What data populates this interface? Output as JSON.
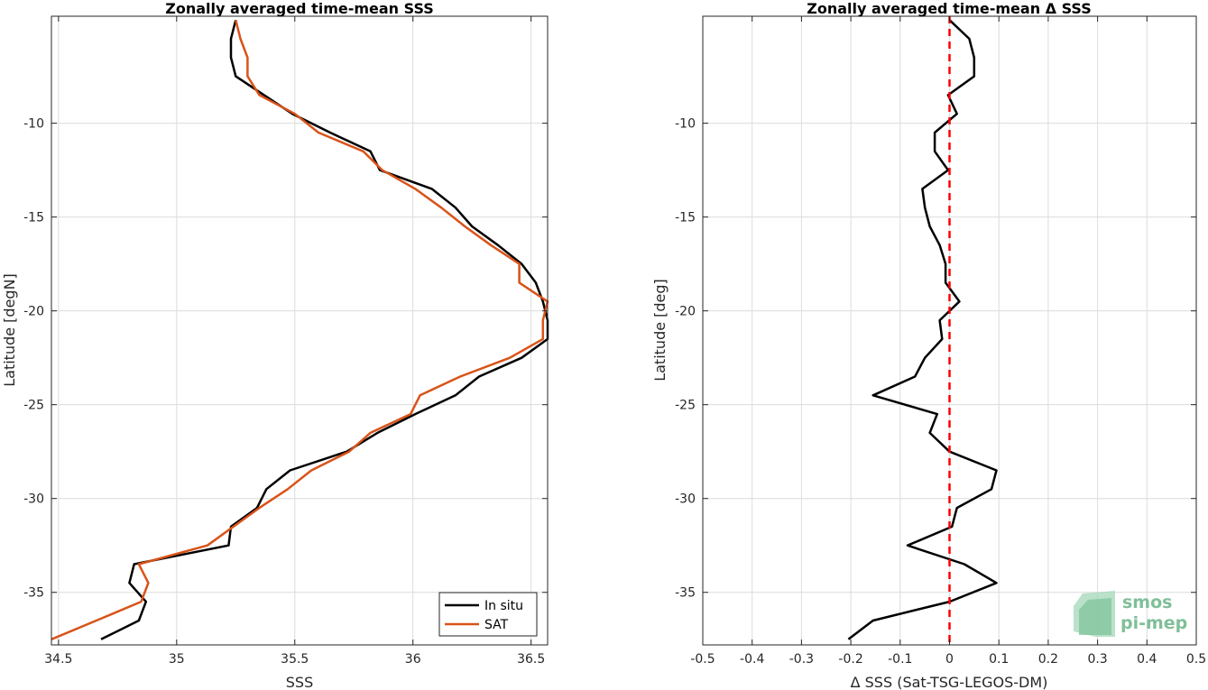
{
  "chart_data": [
    {
      "type": "line",
      "title": "Zonally averaged time-mean SSS",
      "xlabel": "SSS",
      "ylabel": "Latitude [degN]",
      "xlim": [
        34.47,
        36.57
      ],
      "ylim": [
        -37.8,
        -4.3
      ],
      "xticks": [
        34.5,
        35,
        35.5,
        36,
        36.5
      ],
      "xtick_labels": [
        "34.5",
        "35",
        "35.5",
        "36",
        "36.5"
      ],
      "yticks": [
        -35,
        -30,
        -25,
        -20,
        -15,
        -10
      ],
      "ytick_labels": [
        "-35",
        "-30",
        "-25",
        "-20",
        "-15",
        "-10"
      ],
      "grid": true,
      "legend": "bottom-right",
      "series": [
        {
          "name": "In situ",
          "color": "#000000",
          "points": [
            [
              35.25,
              -4.5
            ],
            [
              35.23,
              -5.5
            ],
            [
              35.23,
              -6.5
            ],
            [
              35.25,
              -7.5
            ],
            [
              35.37,
              -8.5
            ],
            [
              35.49,
              -9.5
            ],
            [
              35.65,
              -10.5
            ],
            [
              35.82,
              -11.5
            ],
            [
              35.86,
              -12.5
            ],
            [
              36.08,
              -13.5
            ],
            [
              36.18,
              -14.5
            ],
            [
              36.25,
              -15.5
            ],
            [
              36.36,
              -16.5
            ],
            [
              36.46,
              -17.5
            ],
            [
              36.52,
              -18.5
            ],
            [
              36.55,
              -19.5
            ],
            [
              36.57,
              -20.5
            ],
            [
              36.57,
              -21.5
            ],
            [
              36.46,
              -22.5
            ],
            [
              36.28,
              -23.5
            ],
            [
              36.18,
              -24.5
            ],
            [
              36.01,
              -25.5
            ],
            [
              35.85,
              -26.5
            ],
            [
              35.72,
              -27.5
            ],
            [
              35.48,
              -28.5
            ],
            [
              35.38,
              -29.5
            ],
            [
              35.34,
              -30.5
            ],
            [
              35.23,
              -31.5
            ],
            [
              35.22,
              -32.5
            ],
            [
              34.82,
              -33.5
            ],
            [
              34.8,
              -34.5
            ],
            [
              34.87,
              -35.5
            ],
            [
              34.84,
              -36.5
            ],
            [
              34.68,
              -37.5
            ]
          ]
        },
        {
          "name": "SAT",
          "color": "#d95319",
          "points": [
            [
              35.25,
              -4.5
            ],
            [
              35.27,
              -5.5
            ],
            [
              35.3,
              -6.5
            ],
            [
              35.3,
              -7.5
            ],
            [
              35.35,
              -8.5
            ],
            [
              35.5,
              -9.5
            ],
            [
              35.6,
              -10.5
            ],
            [
              35.79,
              -11.5
            ],
            [
              35.87,
              -12.5
            ],
            [
              36.01,
              -13.5
            ],
            [
              36.12,
              -14.5
            ],
            [
              36.22,
              -15.5
            ],
            [
              36.33,
              -16.5
            ],
            [
              36.45,
              -17.5
            ],
            [
              36.45,
              -18.5
            ],
            [
              36.57,
              -19.5
            ],
            [
              36.55,
              -20.5
            ],
            [
              36.55,
              -21.5
            ],
            [
              36.41,
              -22.5
            ],
            [
              36.2,
              -23.5
            ],
            [
              36.03,
              -24.5
            ],
            [
              35.99,
              -25.5
            ],
            [
              35.82,
              -26.5
            ],
            [
              35.73,
              -27.5
            ],
            [
              35.57,
              -28.5
            ],
            [
              35.47,
              -29.5
            ],
            [
              35.35,
              -30.5
            ],
            [
              35.24,
              -31.5
            ],
            [
              35.13,
              -32.5
            ],
            [
              34.84,
              -33.5
            ],
            [
              34.88,
              -34.5
            ],
            [
              34.85,
              -35.5
            ],
            [
              34.66,
              -36.5
            ],
            [
              34.47,
              -37.5
            ]
          ]
        }
      ]
    },
    {
      "type": "line",
      "title": "Zonally averaged time-mean Δ SSS",
      "xlabel": "Δ SSS (Sat-TSG-LEGOS-DM)",
      "ylabel": "Latitude [deg]",
      "xlim": [
        -0.5,
        0.5
      ],
      "ylim": [
        -37.8,
        -4.3
      ],
      "xticks": [
        -0.5,
        -0.4,
        -0.3,
        -0.2,
        -0.1,
        0,
        0.1,
        0.2,
        0.3,
        0.4,
        0.5
      ],
      "xtick_labels": [
        "-0.5",
        "-0.4",
        "-0.3",
        "-0.2",
        "-0.1",
        "0",
        "0.1",
        "0.2",
        "0.3",
        "0.4",
        "0.5"
      ],
      "yticks": [
        -35,
        -30,
        -25,
        -20,
        -15,
        -10
      ],
      "ytick_labels": [
        "-35",
        "-30",
        "-25",
        "-20",
        "-15",
        "-10"
      ],
      "grid": true,
      "series": [
        {
          "color": "#000000",
          "points": [
            [
              0.0,
              -4.5
            ],
            [
              0.04,
              -5.5
            ],
            [
              0.05,
              -6.5
            ],
            [
              0.05,
              -7.5
            ],
            [
              -0.003,
              -8.5
            ],
            [
              0.015,
              -9.5
            ],
            [
              -0.03,
              -10.5
            ],
            [
              -0.03,
              -11.5
            ],
            [
              -0.003,
              -12.5
            ],
            [
              -0.055,
              -13.5
            ],
            [
              -0.05,
              -14.5
            ],
            [
              -0.04,
              -15.5
            ],
            [
              -0.02,
              -16.5
            ],
            [
              -0.008,
              -17.5
            ],
            [
              -0.008,
              -18.5
            ],
            [
              0.02,
              -19.5
            ],
            [
              -0.02,
              -20.5
            ],
            [
              -0.015,
              -21.5
            ],
            [
              -0.05,
              -22.5
            ],
            [
              -0.07,
              -23.5
            ],
            [
              -0.155,
              -24.5
            ],
            [
              -0.025,
              -25.5
            ],
            [
              -0.04,
              -26.5
            ],
            [
              0.0,
              -27.5
            ],
            [
              0.095,
              -28.5
            ],
            [
              0.085,
              -29.5
            ],
            [
              0.015,
              -30.5
            ],
            [
              0.005,
              -31.5
            ],
            [
              -0.085,
              -32.5
            ],
            [
              0.03,
              -33.5
            ],
            [
              0.095,
              -34.5
            ],
            [
              0.0,
              -35.5
            ],
            [
              -0.155,
              -36.5
            ],
            [
              -0.205,
              -37.5
            ]
          ]
        },
        {
          "color": "#ff0000",
          "dash": true,
          "points": [
            [
              0,
              -4.3
            ],
            [
              0,
              -37.8
            ]
          ]
        }
      ]
    }
  ],
  "legend": {
    "in_situ_label": "In situ",
    "sat_label": "SAT"
  },
  "logo": {
    "line1": "smos",
    "line2": "pi-mep"
  }
}
